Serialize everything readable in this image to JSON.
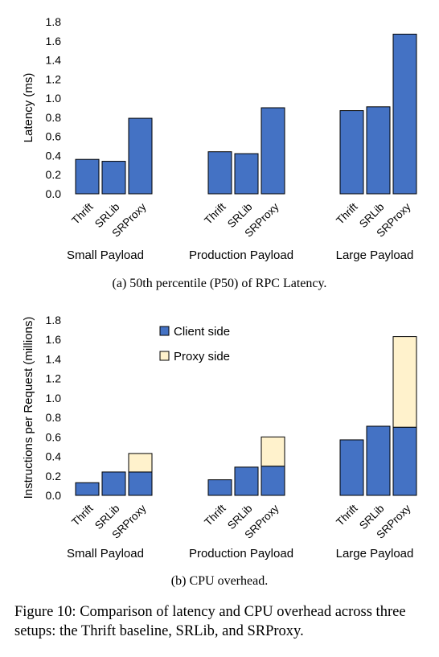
{
  "colors": {
    "client": "#4472C4",
    "proxy": "#FFF2CC",
    "stroke": "#000000"
  },
  "chart_data": [
    {
      "type": "bar",
      "caption": "(a) 50th percentile (P50) of RPC Latency.",
      "ylabel": "Latency (ms)",
      "ylim": [
        0,
        1.8
      ],
      "yticks": [
        "0.0",
        "0.2",
        "0.4",
        "0.6",
        "0.8",
        "1.0",
        "1.2",
        "1.4",
        "1.6",
        "1.8"
      ],
      "groups": [
        "Small Payload",
        "Production Payload",
        "Large Payload"
      ],
      "categories": [
        "Thrift",
        "SRLib",
        "SRProxy"
      ],
      "series": [
        {
          "values": [
            [
              0.36,
              0.34,
              0.79
            ],
            [
              0.44,
              0.42,
              0.9
            ],
            [
              0.87,
              0.91,
              1.67
            ]
          ]
        }
      ]
    },
    {
      "type": "bar",
      "stacked": true,
      "caption": "(b) CPU overhead.",
      "ylabel": "Instructions per Request (millions)",
      "ylim": [
        0,
        1.8
      ],
      "yticks": [
        "0.0",
        "0.2",
        "0.4",
        "0.6",
        "0.8",
        "1.0",
        "1.2",
        "1.4",
        "1.6",
        "1.8"
      ],
      "legend_position": "top-left",
      "groups": [
        "Small Payload",
        "Production Payload",
        "Large Payload"
      ],
      "categories": [
        "Thrift",
        "SRLib",
        "SRProxy"
      ],
      "series": [
        {
          "name": "Client side",
          "values": [
            [
              0.13,
              0.24,
              0.24
            ],
            [
              0.16,
              0.29,
              0.3
            ],
            [
              0.57,
              0.71,
              0.7
            ]
          ]
        },
        {
          "name": "Proxy side",
          "values": [
            [
              0,
              0,
              0.19
            ],
            [
              0,
              0,
              0.3
            ],
            [
              0,
              0,
              0.93
            ]
          ]
        }
      ]
    }
  ],
  "figure_caption": "Figure 10: Comparison of latency and CPU overhead across three setups: the Thrift baseline, SRLib, and SRProxy."
}
